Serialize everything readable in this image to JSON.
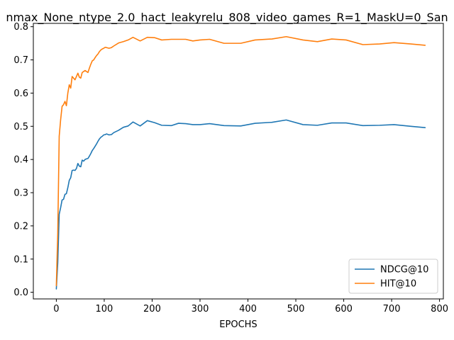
{
  "chart_data": {
    "type": "line",
    "title": "nmax_None_ntype_2.0_hact_leakyrelu_808_video_games_R=1_MaskU=0_San",
    "xlabel": "EPOCHS",
    "ylabel": "",
    "xlim": [
      -48,
      808
    ],
    "ylim": [
      -0.02,
      0.81
    ],
    "xticks": [
      0,
      100,
      200,
      300,
      400,
      500,
      600,
      700,
      800
    ],
    "yticks": [
      0.0,
      0.1,
      0.2,
      0.3,
      0.4,
      0.5,
      0.6,
      0.7,
      0.8
    ],
    "xtick_labels": [
      "0",
      "100",
      "200",
      "300",
      "400",
      "500",
      "600",
      "700",
      "800"
    ],
    "ytick_labels": [
      "0.0",
      "0.1",
      "0.2",
      "0.3",
      "0.4",
      "0.5",
      "0.6",
      "0.7",
      "0.8"
    ],
    "grid": false,
    "legend_position": "lower-right",
    "series": [
      {
        "name": "NDCG@10",
        "color": "#1f77b4",
        "x": [
          0,
          3,
          6,
          9,
          12,
          15,
          18,
          21,
          24,
          27,
          30,
          33,
          36,
          39,
          42,
          45,
          48,
          51,
          54,
          57,
          60,
          63,
          66,
          69,
          72,
          75,
          78,
          81,
          84,
          87,
          90,
          93,
          96,
          99,
          102,
          105,
          110,
          115,
          120,
          130,
          140,
          150,
          160,
          175,
          190,
          205,
          220,
          240,
          255,
          270,
          285,
          300,
          320,
          350,
          385,
          415,
          450,
          480,
          515,
          545,
          575,
          605,
          640,
          675,
          705,
          740,
          770
        ],
        "y": [
          0.01,
          0.09,
          0.235,
          0.255,
          0.278,
          0.28,
          0.295,
          0.297,
          0.315,
          0.337,
          0.345,
          0.367,
          0.368,
          0.367,
          0.373,
          0.388,
          0.38,
          0.378,
          0.398,
          0.395,
          0.4,
          0.402,
          0.403,
          0.41,
          0.418,
          0.427,
          0.433,
          0.44,
          0.447,
          0.455,
          0.462,
          0.467,
          0.47,
          0.474,
          0.475,
          0.477,
          0.474,
          0.475,
          0.481,
          0.488,
          0.497,
          0.501,
          0.513,
          0.501,
          0.517,
          0.511,
          0.503,
          0.502,
          0.509,
          0.508,
          0.505,
          0.505,
          0.508,
          0.502,
          0.501,
          0.509,
          0.512,
          0.519,
          0.505,
          0.503,
          0.51,
          0.51,
          0.502,
          0.503,
          0.505,
          0.5,
          0.496
        ]
      },
      {
        "name": "HIT@10",
        "color": "#ff7f0e",
        "x": [
          0,
          3,
          6,
          9,
          12,
          15,
          18,
          21,
          24,
          27,
          30,
          33,
          36,
          39,
          42,
          45,
          48,
          51,
          54,
          57,
          60,
          63,
          66,
          69,
          72,
          75,
          78,
          81,
          84,
          87,
          90,
          93,
          96,
          99,
          102,
          105,
          110,
          115,
          120,
          130,
          140,
          150,
          160,
          175,
          190,
          205,
          220,
          240,
          255,
          270,
          285,
          300,
          320,
          350,
          385,
          415,
          450,
          480,
          515,
          545,
          575,
          605,
          640,
          675,
          705,
          740,
          770
        ],
        "y": [
          0.02,
          0.18,
          0.47,
          0.52,
          0.56,
          0.565,
          0.575,
          0.562,
          0.6,
          0.625,
          0.615,
          0.65,
          0.645,
          0.64,
          0.65,
          0.66,
          0.648,
          0.645,
          0.662,
          0.665,
          0.668,
          0.665,
          0.662,
          0.675,
          0.687,
          0.697,
          0.7,
          0.707,
          0.713,
          0.718,
          0.725,
          0.73,
          0.733,
          0.735,
          0.738,
          0.737,
          0.735,
          0.737,
          0.742,
          0.751,
          0.755,
          0.76,
          0.768,
          0.757,
          0.768,
          0.767,
          0.76,
          0.762,
          0.762,
          0.762,
          0.757,
          0.76,
          0.762,
          0.75,
          0.75,
          0.76,
          0.763,
          0.77,
          0.76,
          0.755,
          0.763,
          0.76,
          0.746,
          0.748,
          0.752,
          0.748,
          0.744
        ]
      }
    ]
  }
}
